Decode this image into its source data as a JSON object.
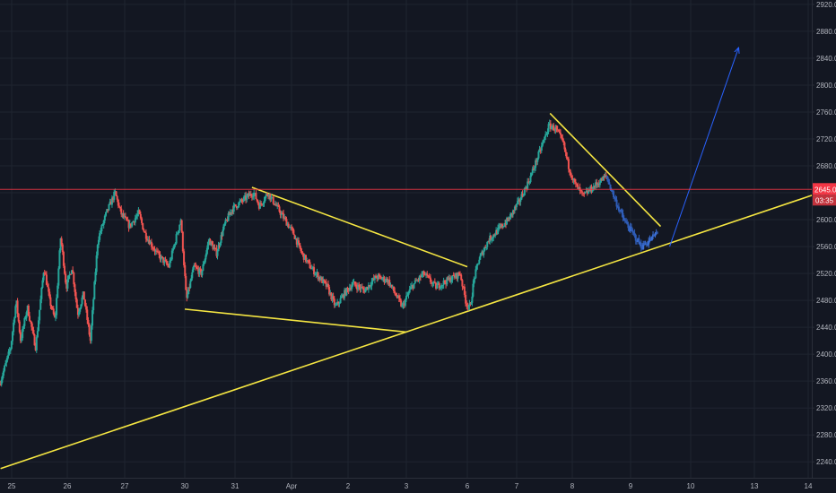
{
  "chart_data": {
    "type": "candlestick",
    "title": "",
    "xlabel": "",
    "ylabel": "",
    "ylim": [
      2230,
      2925
    ],
    "grid": true,
    "y_ticks": [
      "2240.0",
      "2280.0",
      "2320.0",
      "2360.0",
      "2400.0",
      "2440.0",
      "2480.0",
      "2520.0",
      "2560.0",
      "2600.0",
      "2640.0",
      "2680.0",
      "2720.0",
      "2760.0",
      "2800.0",
      "2840.0",
      "2880.0",
      "2920.0"
    ],
    "x_ticks": [
      {
        "label": "25",
        "t": 0
      },
      {
        "label": "26",
        "t": 1
      },
      {
        "label": "27",
        "t": 2
      },
      {
        "label": "30",
        "t": 3
      },
      {
        "label": "31",
        "t": 4
      },
      {
        "label": "Apr",
        "t": 5
      },
      {
        "label": "2",
        "t": 6
      },
      {
        "label": "3",
        "t": 7
      },
      {
        "label": "6",
        "t": 8
      },
      {
        "label": "7",
        "t": 9
      },
      {
        "label": "8",
        "t": 10
      },
      {
        "label": "9",
        "t": 11
      },
      {
        "label": "10",
        "t": 12
      },
      {
        "label": "13",
        "t": 13
      },
      {
        "label": "14",
        "t": 14
      }
    ],
    "price_line": {
      "value": 2645.0,
      "label": "2645.0",
      "countdown": "03:35",
      "color": "#f23645"
    },
    "path_points": [
      [
        -0.2,
        2355
      ],
      [
        0.0,
        2410
      ],
      [
        0.1,
        2480
      ],
      [
        0.18,
        2420
      ],
      [
        0.3,
        2470
      ],
      [
        0.45,
        2410
      ],
      [
        0.6,
        2530
      ],
      [
        0.7,
        2480
      ],
      [
        0.8,
        2450
      ],
      [
        0.9,
        2575
      ],
      [
        1.0,
        2500
      ],
      [
        1.1,
        2530
      ],
      [
        1.2,
        2460
      ],
      [
        1.3,
        2490
      ],
      [
        1.42,
        2420
      ],
      [
        1.55,
        2570
      ],
      [
        1.7,
        2610
      ],
      [
        1.85,
        2640
      ],
      [
        1.95,
        2610
      ],
      [
        2.1,
        2590
      ],
      [
        2.25,
        2610
      ],
      [
        2.35,
        2580
      ],
      [
        2.55,
        2550
      ],
      [
        2.75,
        2530
      ],
      [
        2.95,
        2600
      ],
      [
        3.05,
        2480
      ],
      [
        3.2,
        2530
      ],
      [
        3.35,
        2520
      ],
      [
        3.5,
        2570
      ],
      [
        3.65,
        2550
      ],
      [
        3.8,
        2590
      ],
      [
        3.95,
        2615
      ],
      [
        4.1,
        2625
      ],
      [
        4.25,
        2635
      ],
      [
        4.35,
        2640
      ],
      [
        4.45,
        2620
      ],
      [
        4.6,
        2640
      ],
      [
        4.75,
        2620
      ],
      [
        4.9,
        2600
      ],
      [
        5.05,
        2580
      ],
      [
        5.2,
        2550
      ],
      [
        5.35,
        2530
      ],
      [
        5.5,
        2515
      ],
      [
        5.65,
        2500
      ],
      [
        5.8,
        2470
      ],
      [
        5.95,
        2490
      ],
      [
        6.1,
        2505
      ],
      [
        6.3,
        2495
      ],
      [
        6.5,
        2515
      ],
      [
        6.7,
        2510
      ],
      [
        6.95,
        2470
      ],
      [
        7.1,
        2500
      ],
      [
        7.3,
        2520
      ],
      [
        7.5,
        2500
      ],
      [
        7.7,
        2510
      ],
      [
        7.9,
        2520
      ],
      [
        8.0,
        2475
      ],
      [
        8.08,
        2470
      ],
      [
        8.15,
        2510
      ],
      [
        8.25,
        2540
      ],
      [
        8.45,
        2570
      ],
      [
        8.65,
        2585
      ],
      [
        8.85,
        2600
      ],
      [
        9.05,
        2625
      ],
      [
        9.25,
        2660
      ],
      [
        9.45,
        2705
      ],
      [
        9.6,
        2740
      ],
      [
        9.72,
        2735
      ],
      [
        9.85,
        2715
      ],
      [
        9.95,
        2680
      ],
      [
        10.05,
        2655
      ],
      [
        10.2,
        2635
      ],
      [
        10.4,
        2650
      ],
      [
        10.6,
        2665
      ]
    ],
    "blue_points": [
      [
        10.6,
        2665
      ],
      [
        10.75,
        2630
      ],
      [
        10.9,
        2600
      ],
      [
        11.05,
        2580
      ],
      [
        11.2,
        2560
      ],
      [
        11.35,
        2570
      ],
      [
        11.45,
        2580
      ]
    ],
    "drawings": [
      {
        "type": "trendline",
        "color": "#f5e642",
        "from": [
          -0.2,
          2230
        ],
        "to": [
          14.1,
          2637
        ]
      },
      {
        "type": "trendline",
        "color": "#f5e642",
        "from": [
          3.0,
          2467
        ],
        "to": [
          7.0,
          2433
        ]
      },
      {
        "type": "trendline",
        "color": "#f5e642",
        "from": [
          4.3,
          2648
        ],
        "to": [
          8.0,
          2530
        ]
      },
      {
        "type": "trendline",
        "color": "#f5e642",
        "from": [
          9.6,
          2758
        ],
        "to": [
          11.5,
          2590
        ]
      },
      {
        "type": "arrow",
        "color": "#2962ff",
        "from": [
          11.65,
          2560
        ],
        "to": [
          12.75,
          2855
        ]
      }
    ]
  }
}
